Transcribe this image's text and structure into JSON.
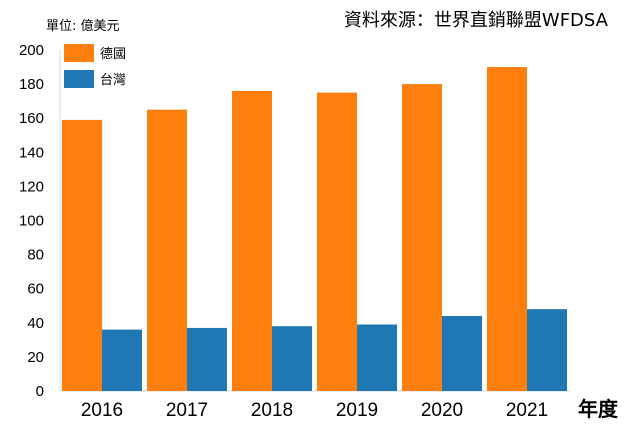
{
  "unit_label": "單位: 億美元",
  "source": "資料來源：世界直銷聯盟WFDSA",
  "x_unit": "年度",
  "colors": {
    "germany": "#ff7f0e",
    "taiwan": "#1f77b4"
  },
  "chart_data": {
    "type": "bar",
    "categories": [
      "2016",
      "2017",
      "2018",
      "2019",
      "2020",
      "2021"
    ],
    "series": [
      {
        "name": "德國",
        "values": [
          159,
          165,
          176,
          175,
          180,
          190
        ]
      },
      {
        "name": "台灣",
        "values": [
          36,
          37,
          38,
          39,
          44,
          48
        ]
      }
    ],
    "ylim": [
      0,
      200
    ],
    "yticks": [
      0,
      20,
      40,
      60,
      80,
      100,
      120,
      140,
      160,
      180,
      200
    ],
    "legend": "top-left",
    "grid": false
  }
}
